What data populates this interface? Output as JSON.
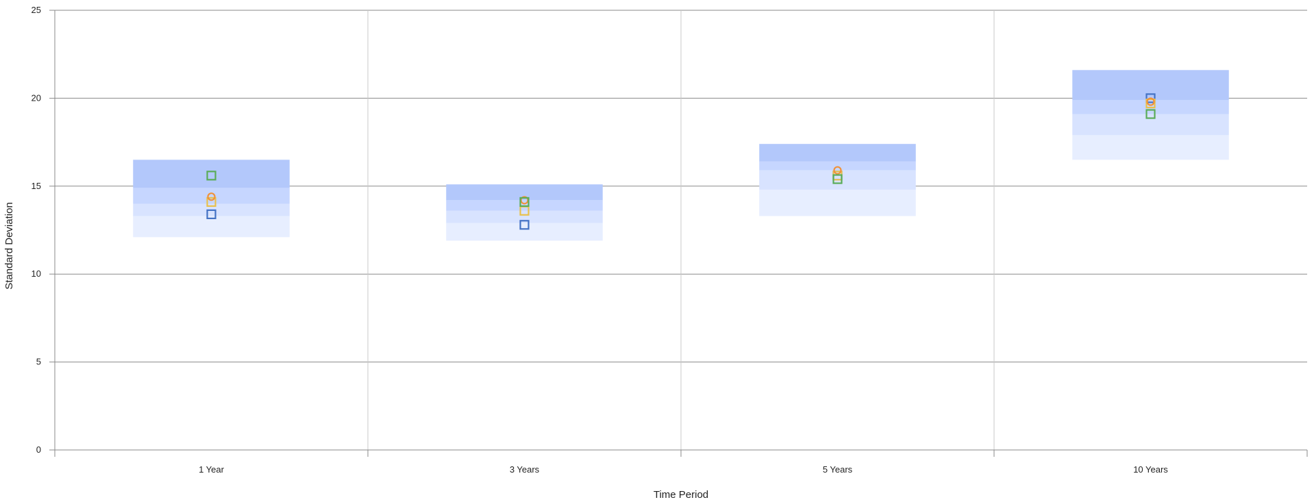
{
  "chart_data": {
    "type": "box-range",
    "title": "",
    "xlabel": "Time Period",
    "ylabel": "Standard Deviation",
    "ylim": [
      0,
      25
    ],
    "yticks": [
      "0",
      "5",
      "10",
      "15",
      "20",
      "25"
    ],
    "categories": [
      "1 Year",
      "3 Years",
      "5 Years",
      "10 Years"
    ],
    "grid": true,
    "legend": "none",
    "range_bands": [
      {
        "category": "1 Year",
        "percentiles": [
          12.1,
          13.3,
          14.0,
          14.9,
          16.5
        ]
      },
      {
        "category": "3 Years",
        "percentiles": [
          11.9,
          12.9,
          13.6,
          14.2,
          15.1
        ]
      },
      {
        "category": "5 Years",
        "percentiles": [
          13.3,
          14.8,
          15.9,
          16.4,
          17.4
        ]
      },
      {
        "category": "10 Years",
        "percentiles": [
          16.5,
          17.9,
          19.1,
          19.9,
          21.6
        ]
      }
    ],
    "band_colors": [
      "#e7eeff",
      "#d8e3ff",
      "#c6d6ff",
      "#b3c8fb"
    ],
    "series": [
      {
        "marker": "square",
        "color": "#4472c4",
        "values": [
          13.4,
          12.8,
          15.6,
          20.0
        ]
      },
      {
        "marker": "square",
        "color": "#e8c14c",
        "values": [
          14.1,
          13.6,
          15.6,
          19.7
        ]
      },
      {
        "marker": "circle",
        "color": "#f0923a",
        "values": [
          14.4,
          14.2,
          15.9,
          19.8
        ]
      },
      {
        "marker": "square",
        "color": "#5aac58",
        "values": [
          15.6,
          14.1,
          15.4,
          19.1
        ]
      }
    ]
  }
}
